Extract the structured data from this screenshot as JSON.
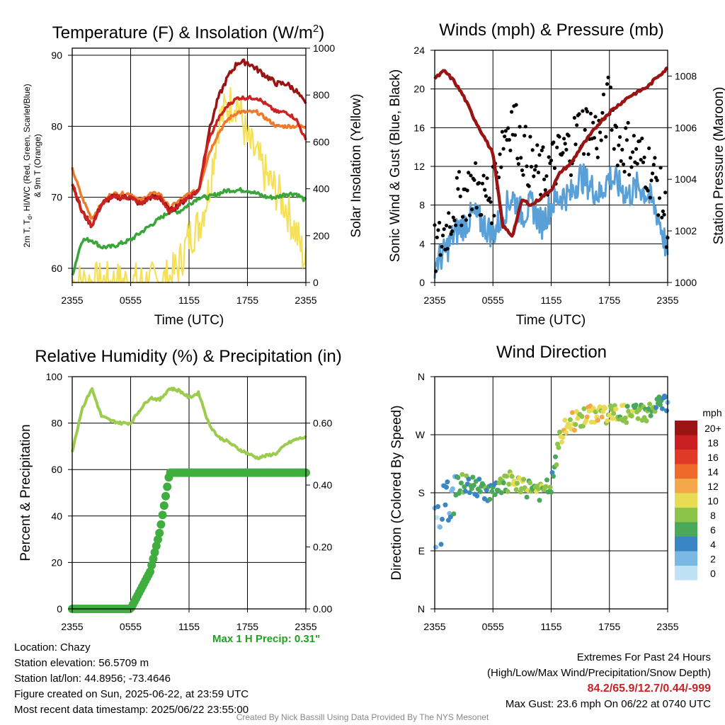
{
  "colors": {
    "temp": "#cc2222",
    "td": "#3aa63a",
    "hiwc": "#9a1414",
    "t9m": "#ef7a2a",
    "insolation": "#f5e05a",
    "wind": "#5aa0d8",
    "gust": "#000000",
    "pressure": "#9a1414",
    "rh": "#9ccc4e",
    "precip": "#3fae3f"
  },
  "panels": {
    "temp": {
      "title_parts": [
        "Temperature (F) & Insolation (W/m",
        "2",
        ")"
      ],
      "ylabel_left_lines": [
        "2m T, T",
        "d",
        ", HI/WC (Red, Green, Scarlet/Blue)",
        "& 9m T (Orange)"
      ],
      "ylabel_right": "Solar Insolation (Yellow)",
      "xlabel": "Time (UTC)",
      "yticks_left": [
        "60",
        "70",
        "80",
        "90"
      ],
      "yticks_right": [
        "0",
        "200",
        "400",
        "600",
        "800",
        "1000"
      ]
    },
    "wind": {
      "title": "Winds (mph) & Pressure (mb)",
      "ylabel_left": "Sonic Wind & Gust (Blue, Black)",
      "ylabel_right": "Station Pressure (Maroon)",
      "xlabel": "Time (UTC)",
      "yticks_left": [
        "0",
        "4",
        "8",
        "12",
        "16",
        "20",
        "24"
      ],
      "yticks_right": [
        "1000",
        "1002",
        "1004",
        "1006",
        "1008"
      ]
    },
    "rh": {
      "title": "Relative Humidity (%) & Precipitation (in)",
      "ylabel_left": "Percent & Precipitation",
      "yticks_left": [
        "0",
        "20",
        "40",
        "60",
        "80",
        "100"
      ],
      "yticks_right": [
        "0.00",
        "0.20",
        "0.40",
        "0.60"
      ]
    },
    "dir": {
      "title": "Wind Direction",
      "ylabel_left": "Direction (Colored By Speed)",
      "yticks_left": [
        "N",
        "E",
        "S",
        "W",
        "N"
      ],
      "legend_title": "mph",
      "legend_labels": [
        "20+",
        "18",
        "16",
        "14",
        "12",
        "10",
        "8",
        "6",
        "4",
        "2",
        "0"
      ],
      "legend_colors": [
        "#9a1414",
        "#c82020",
        "#e03a26",
        "#ef6a2a",
        "#f5a84a",
        "#e8dc54",
        "#8cc44a",
        "#4aa85a",
        "#3a86c4",
        "#7ab8e4",
        "#bfe2f4"
      ]
    }
  },
  "xticks": [
    "2355",
    "0555",
    "1155",
    "1755",
    "2355"
  ],
  "info": {
    "location": "Location: Chazy",
    "elevation": "Station elevation: 56.5709 m",
    "latlon": "Station lat/lon: 44.8956; -73.4646",
    "created": "Figure created on Sun, 2025-06-22, at 23:59 UTC",
    "recent": "Most recent data timestamp: 2025/06/22 23:55:00",
    "max_precip": "Max 1 H Precip: 0.31\"",
    "extremes_title": "Extremes For Past 24 Hours",
    "extremes_sub": "(High/Low/Max Wind/Precipitation/Snow Depth)",
    "extremes_values": "84.2/65.9/12.7/0.44/-999",
    "max_gust": "Max Gust: 23.6 mph On 06/22 at 0740 UTC",
    "credit": "Created By Nick Bassill Using Data Provided By The NYS Mesonet"
  },
  "chart_data": [
    {
      "type": "line",
      "title": "Temperature (F) & Insolation (W/m2)",
      "xlabel": "Time (UTC)",
      "ylabel": "2m T, Td, HI/WC (Red, Green, Scarlet/Blue) & 9m T (Orange)",
      "ylabel_right": "Solar Insolation (Yellow)",
      "ylim": [
        58,
        91
      ],
      "ylim_right": [
        0,
        1000
      ],
      "x_hours": [
        0,
        1,
        2,
        3,
        4,
        5,
        6,
        7,
        8,
        9,
        10,
        11,
        12,
        13,
        14,
        15,
        16,
        17,
        18,
        19,
        20,
        21,
        22,
        23,
        24
      ],
      "series": [
        {
          "name": "2m T",
          "axis": "left",
          "values": [
            72,
            68,
            66,
            69,
            70,
            70,
            70,
            69,
            70,
            70,
            68,
            69,
            70,
            71,
            78,
            81,
            83,
            84,
            84,
            84,
            83,
            82,
            82,
            81,
            78
          ]
        },
        {
          "name": "9m T",
          "axis": "left",
          "values": [
            74,
            70,
            67,
            69,
            70.5,
            70.5,
            70.5,
            69.5,
            70.5,
            70.5,
            68.5,
            69.5,
            70.5,
            71,
            76,
            79,
            81,
            82,
            82,
            82,
            81,
            80,
            80,
            80,
            80
          ]
        },
        {
          "name": "HI/WC",
          "axis": "left",
          "values": [
            72,
            68,
            66,
            69,
            70,
            70,
            70,
            69,
            70,
            70,
            68,
            69,
            70,
            71,
            79,
            84,
            87,
            89,
            89,
            88,
            87,
            86,
            86,
            85,
            83
          ]
        },
        {
          "name": "Td",
          "axis": "left",
          "values": [
            59,
            64,
            64,
            63,
            63,
            63.5,
            64,
            65,
            66,
            67,
            68,
            68,
            69,
            70,
            70,
            70.5,
            71,
            71,
            71,
            70.5,
            70,
            70,
            70.5,
            70.5,
            69.5
          ]
        },
        {
          "name": "Solar Insolation",
          "axis": "right",
          "values": [
            0,
            0,
            0,
            0,
            0,
            0,
            0,
            0,
            0,
            5,
            15,
            80,
            200,
            250,
            400,
            700,
            780,
            800,
            620,
            550,
            460,
            400,
            330,
            220,
            80
          ]
        }
      ]
    },
    {
      "type": "line",
      "title": "Winds (mph) & Pressure (mb)",
      "xlabel": "Time (UTC)",
      "ylabel": "Sonic Wind & Gust (Blue, Black)",
      "ylabel_right": "Station Pressure (Maroon)",
      "ylim": [
        0,
        24
      ],
      "ylim_right": [
        1000,
        1009
      ],
      "x_hours": [
        0,
        1,
        2,
        3,
        4,
        5,
        6,
        7,
        8,
        9,
        10,
        11,
        12,
        13,
        14,
        15,
        16,
        17,
        18,
        19,
        20,
        21,
        22,
        23,
        24
      ],
      "series": [
        {
          "name": "Sonic Wind",
          "axis": "left",
          "values": [
            2,
            3,
            5,
            6,
            7,
            6,
            5,
            7,
            9,
            7,
            8,
            6,
            8,
            9,
            9,
            11,
            10,
            9,
            11,
            10,
            9,
            10,
            9,
            7,
            3
          ]
        },
        {
          "name": "Gust",
          "axis": "left",
          "values": [
            3,
            5,
            8,
            9,
            10,
            9,
            9,
            15,
            17,
            14,
            12,
            11,
            12,
            13,
            14,
            16,
            16,
            15,
            19,
            14,
            14,
            13,
            12,
            10,
            6
          ]
        },
        {
          "name": "Station Pressure",
          "axis": "right",
          "values": [
            1007.9,
            1008.2,
            1007.8,
            1007.2,
            1006.4,
            1005.7,
            1005.0,
            1002.2,
            1001.8,
            1003.2,
            1003.0,
            1003.3,
            1003.6,
            1004.3,
            1004.6,
            1005.2,
            1005.7,
            1006.2,
            1006.6,
            1006.9,
            1007.2,
            1007.4,
            1007.6,
            1008.0,
            1008.3
          ]
        }
      ]
    },
    {
      "type": "line",
      "title": "Relative Humidity (%) & Precipitation (in)",
      "ylabel": "Percent & Precipitation",
      "ylim": [
        0,
        100
      ],
      "ylim_right": [
        0,
        0.75
      ],
      "x_hours": [
        0,
        1,
        2,
        3,
        4,
        5,
        6,
        7,
        8,
        9,
        10,
        11,
        12,
        13,
        14,
        15,
        16,
        17,
        18,
        19,
        20,
        21,
        22,
        23,
        24
      ],
      "series": [
        {
          "name": "Relative Humidity",
          "axis": "left",
          "values": [
            68,
            86,
            95,
            83,
            81,
            80,
            80,
            86,
            91,
            90,
            95,
            94,
            91,
            93,
            80,
            74,
            72,
            69,
            67,
            65,
            66,
            67,
            71,
            73,
            74
          ]
        },
        {
          "name": "Precipitation",
          "axis": "right",
          "values": [
            0,
            0,
            0,
            0,
            0,
            0,
            0,
            0.06,
            0.12,
            0.25,
            0.44,
            0.44,
            0.44,
            0.44,
            0.44,
            0.44,
            0.44,
            0.44,
            0.44,
            0.44,
            0.44,
            0.44,
            0.44,
            0.44,
            0.44
          ]
        }
      ]
    },
    {
      "type": "scatter",
      "title": "Wind Direction",
      "ylabel": "Direction (Colored By Speed)",
      "ylim": [
        0,
        360
      ],
      "x_hours": [
        0,
        1,
        2,
        3,
        4,
        5,
        6,
        7,
        8,
        9,
        10,
        11,
        12,
        13,
        14,
        15,
        16,
        17,
        18,
        19,
        20,
        21,
        22,
        23,
        24
      ],
      "series": [
        {
          "name": "Direction",
          "values": [
            130,
            150,
            190,
            195,
            190,
            185,
            180,
            190,
            200,
            185,
            190,
            180,
            190,
            270,
            290,
            295,
            300,
            305,
            300,
            305,
            300,
            305,
            305,
            315,
            320
          ]
        },
        {
          "name": "Speed",
          "values": [
            2,
            3,
            4,
            6,
            5,
            5,
            6,
            7,
            8,
            9,
            7,
            8,
            6,
            9,
            10,
            9,
            11,
            10,
            9,
            9,
            8,
            7,
            8,
            6,
            4
          ]
        }
      ]
    }
  ]
}
